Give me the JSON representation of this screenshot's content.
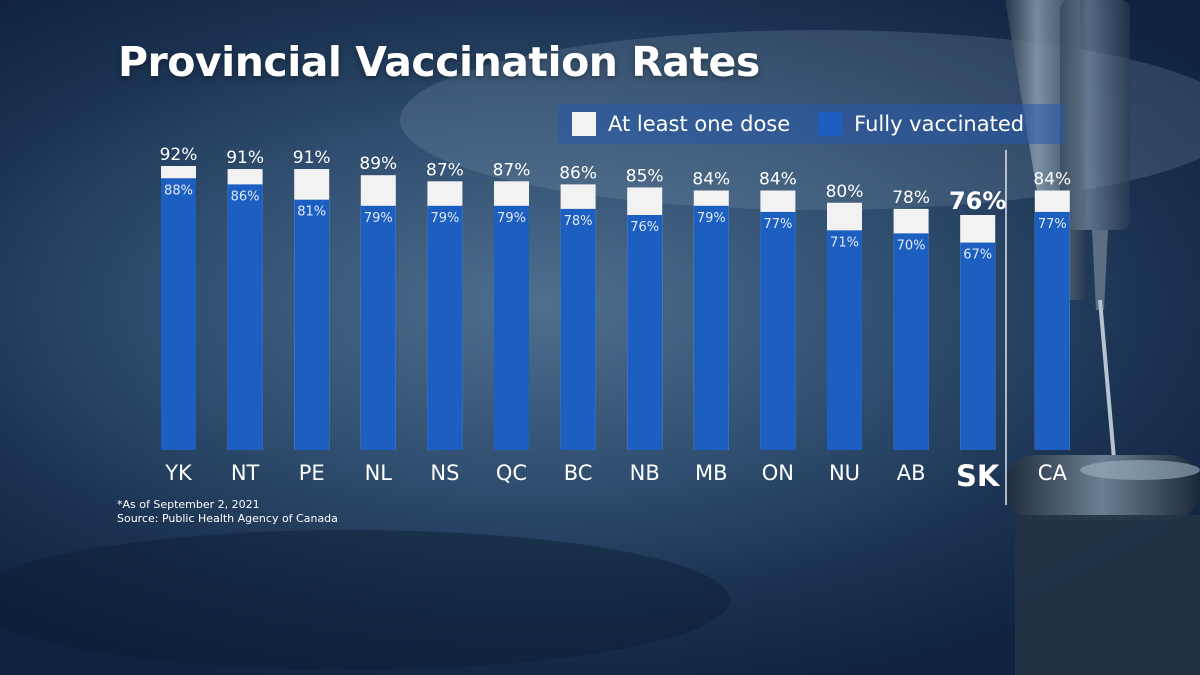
{
  "chart_data": {
    "type": "bar",
    "title": "Provincial Vaccination Rates",
    "categories": [
      "YK",
      "NT",
      "PE",
      "NL",
      "NS",
      "QC",
      "BC",
      "NB",
      "MB",
      "ON",
      "NU",
      "AB",
      "SK",
      "CA"
    ],
    "series": [
      {
        "name": "At least one dose",
        "values": [
          92,
          91,
          91,
          89,
          87,
          87,
          86,
          85,
          84,
          84,
          80,
          78,
          76,
          84
        ]
      },
      {
        "name": "Fully vaccinated",
        "values": [
          88,
          86,
          81,
          79,
          79,
          79,
          78,
          76,
          79,
          77,
          71,
          70,
          67,
          77
        ]
      }
    ],
    "highlight": "SK",
    "ylim": [
      0,
      100
    ],
    "grid": false,
    "legend": "top-right",
    "colors": {
      "one_dose": "#f2f2f2",
      "fully": "#1d5fc0"
    }
  },
  "footnote": {
    "date_note": "*As of September 2, 2021",
    "source": "Source: Public Health Agency of Canada"
  }
}
